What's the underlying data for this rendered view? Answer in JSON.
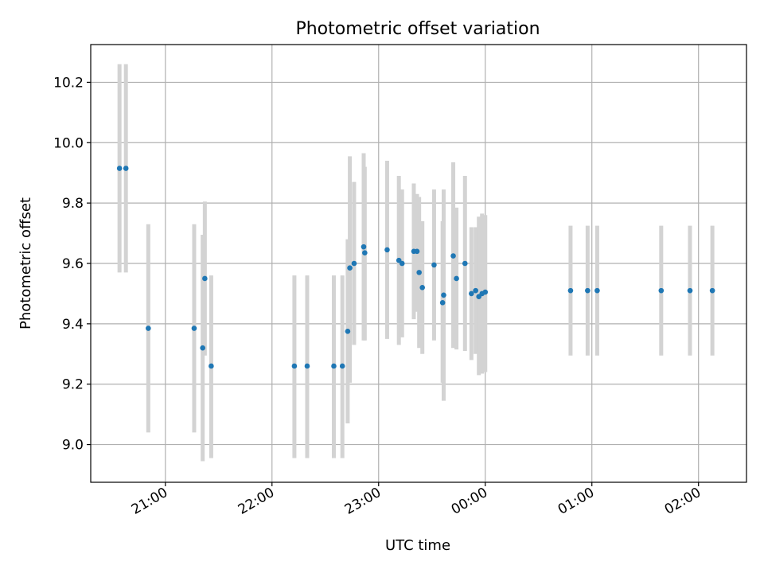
{
  "chart_data": {
    "type": "scatter",
    "title": "Photometric offset variation",
    "xlabel": "UTC time",
    "ylabel": "Photometric offset",
    "grid": true,
    "xlim_hours": [
      20.3,
      26.45
    ],
    "ylim": [
      8.875,
      10.325
    ],
    "x_ticks": [
      {
        "hour": 21,
        "label": "21:00"
      },
      {
        "hour": 22,
        "label": "22:00"
      },
      {
        "hour": 23,
        "label": "23:00"
      },
      {
        "hour": 24,
        "label": "00:00"
      },
      {
        "hour": 25,
        "label": "01:00"
      },
      {
        "hour": 26,
        "label": "02:00"
      }
    ],
    "y_ticks": [
      {
        "value": 9.0,
        "label": "9.0"
      },
      {
        "value": 9.2,
        "label": "9.2"
      },
      {
        "value": 9.4,
        "label": "9.4"
      },
      {
        "value": 9.6,
        "label": "9.6"
      },
      {
        "value": 9.8,
        "label": "9.8"
      },
      {
        "value": 10.0,
        "label": "10.0"
      },
      {
        "value": 10.2,
        "label": "10.2"
      }
    ],
    "colors": {
      "point": "#1f77b4",
      "errorbar": "#d3d3d3",
      "grid": "#b0b0b0"
    },
    "points": [
      {
        "x": 20.57,
        "y": 9.915,
        "lo": 9.57,
        "hi": 10.26
      },
      {
        "x": 20.63,
        "y": 9.915,
        "lo": 9.57,
        "hi": 10.26
      },
      {
        "x": 20.84,
        "y": 9.385,
        "lo": 9.04,
        "hi": 9.73
      },
      {
        "x": 21.27,
        "y": 9.385,
        "lo": 9.04,
        "hi": 9.73
      },
      {
        "x": 21.35,
        "y": 9.32,
        "lo": 8.945,
        "hi": 9.695
      },
      {
        "x": 21.37,
        "y": 9.55,
        "lo": 9.295,
        "hi": 9.805
      },
      {
        "x": 21.43,
        "y": 9.26,
        "lo": 8.955,
        "hi": 9.56
      },
      {
        "x": 22.21,
        "y": 9.26,
        "lo": 8.955,
        "hi": 9.56
      },
      {
        "x": 22.33,
        "y": 9.26,
        "lo": 8.955,
        "hi": 9.56
      },
      {
        "x": 22.58,
        "y": 9.26,
        "lo": 8.955,
        "hi": 9.56
      },
      {
        "x": 22.66,
        "y": 9.26,
        "lo": 8.955,
        "hi": 9.56
      },
      {
        "x": 22.71,
        "y": 9.375,
        "lo": 9.07,
        "hi": 9.68
      },
      {
        "x": 22.73,
        "y": 9.585,
        "lo": 9.205,
        "hi": 9.955
      },
      {
        "x": 22.77,
        "y": 9.6,
        "lo": 9.33,
        "hi": 9.87
      },
      {
        "x": 22.86,
        "y": 9.655,
        "lo": 9.345,
        "hi": 9.965
      },
      {
        "x": 22.87,
        "y": 9.635,
        "lo": 9.345,
        "hi": 9.92
      },
      {
        "x": 23.08,
        "y": 9.645,
        "lo": 9.35,
        "hi": 9.94
      },
      {
        "x": 23.19,
        "y": 9.61,
        "lo": 9.33,
        "hi": 9.89
      },
      {
        "x": 23.22,
        "y": 9.6,
        "lo": 9.355,
        "hi": 9.845
      },
      {
        "x": 23.33,
        "y": 9.64,
        "lo": 9.415,
        "hi": 9.865
      },
      {
        "x": 23.36,
        "y": 9.64,
        "lo": 9.44,
        "hi": 9.83
      },
      {
        "x": 23.38,
        "y": 9.57,
        "lo": 9.32,
        "hi": 9.82
      },
      {
        "x": 23.41,
        "y": 9.52,
        "lo": 9.3,
        "hi": 9.74
      },
      {
        "x": 23.52,
        "y": 9.595,
        "lo": 9.345,
        "hi": 9.845
      },
      {
        "x": 23.6,
        "y": 9.47,
        "lo": 9.205,
        "hi": 9.74
      },
      {
        "x": 23.61,
        "y": 9.495,
        "lo": 9.145,
        "hi": 9.845
      },
      {
        "x": 23.7,
        "y": 9.625,
        "lo": 9.32,
        "hi": 9.935
      },
      {
        "x": 23.73,
        "y": 9.55,
        "lo": 9.315,
        "hi": 9.785
      },
      {
        "x": 23.81,
        "y": 9.6,
        "lo": 9.31,
        "hi": 9.89
      },
      {
        "x": 23.87,
        "y": 9.5,
        "lo": 9.28,
        "hi": 9.72
      },
      {
        "x": 23.91,
        "y": 9.51,
        "lo": 9.3,
        "hi": 9.72
      },
      {
        "x": 23.94,
        "y": 9.49,
        "lo": 9.23,
        "hi": 9.755
      },
      {
        "x": 23.97,
        "y": 9.5,
        "lo": 9.235,
        "hi": 9.765
      },
      {
        "x": 24.0,
        "y": 9.505,
        "lo": 9.24,
        "hi": 9.76
      },
      {
        "x": 24.8,
        "y": 9.51,
        "lo": 9.295,
        "hi": 9.725
      },
      {
        "x": 24.96,
        "y": 9.51,
        "lo": 9.295,
        "hi": 9.725
      },
      {
        "x": 25.05,
        "y": 9.51,
        "lo": 9.295,
        "hi": 9.725
      },
      {
        "x": 25.65,
        "y": 9.51,
        "lo": 9.295,
        "hi": 9.725
      },
      {
        "x": 25.92,
        "y": 9.51,
        "lo": 9.295,
        "hi": 9.725
      },
      {
        "x": 26.13,
        "y": 9.51,
        "lo": 9.295,
        "hi": 9.725
      }
    ]
  }
}
